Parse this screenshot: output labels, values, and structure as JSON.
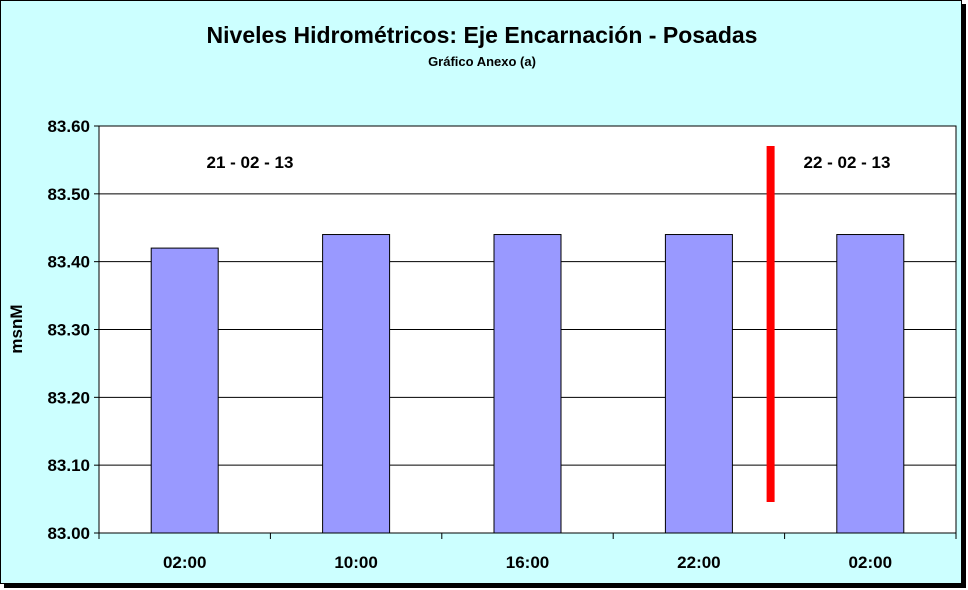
{
  "chart_data": {
    "type": "bar",
    "title": "Niveles Hidrométricos: Eje Encarnación - Posadas",
    "subtitle": "Gráfico Anexo (a)",
    "xlabel": "",
    "ylabel": "msnM",
    "categories": [
      "02:00",
      "10:00",
      "16:00",
      "22:00",
      "02:00"
    ],
    "values": [
      83.42,
      83.44,
      83.44,
      83.44,
      83.44
    ],
    "ylim": [
      83.0,
      83.6
    ],
    "yticks": [
      "83.00",
      "83.10",
      "83.20",
      "83.30",
      "83.40",
      "83.50",
      "83.60"
    ],
    "grid": true,
    "legend": "none",
    "annotations": [
      "21 - 02 - 13",
      "22 - 02 - 13"
    ],
    "day_separator": {
      "after_category_index": 3,
      "color": "#ff0000"
    },
    "colors": {
      "bar": "#9999ff",
      "plot_bg": "#ffffff",
      "chart_bg": "#ccffff",
      "separator": "#ff0000"
    }
  }
}
